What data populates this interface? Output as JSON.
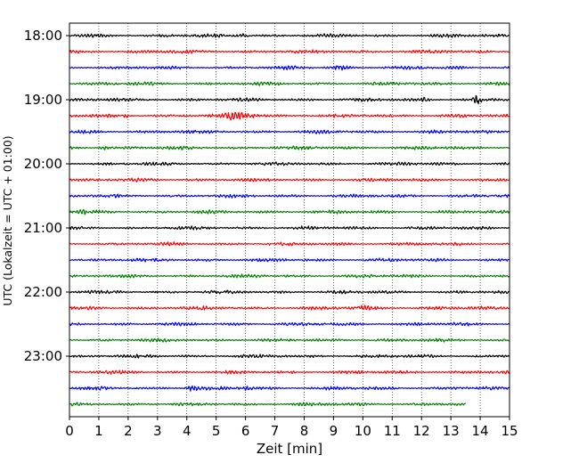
{
  "chart_data": {
    "type": "line",
    "title": "",
    "xlabel": "Zeit  [min]",
    "ylabel": "UTC (Lokalzeit = UTC + 01:00)",
    "xlim": [
      0,
      15
    ],
    "x_ticks": [
      "0",
      "1",
      "2",
      "3",
      "4",
      "5",
      "6",
      "7",
      "8",
      "9",
      "10",
      "11",
      "12",
      "13",
      "14",
      "15"
    ],
    "y_ticks": [
      {
        "label": "18:00",
        "row": 0
      },
      {
        "label": "19:00",
        "row": 4
      },
      {
        "label": "20:00",
        "row": 8
      },
      {
        "label": "21:00",
        "row": 12
      },
      {
        "label": "22:00",
        "row": 16
      },
      {
        "label": "23:00",
        "row": 20
      }
    ],
    "row_duration_min": 15,
    "rows_per_hour": 4,
    "trace_colors": [
      "#000000",
      "#ff0000",
      "#0000ff",
      "#007f00"
    ],
    "grid": "vertical dotted lines at every minute",
    "traces": [
      {
        "start": "18:00",
        "color": "#000000",
        "end_min": 15
      },
      {
        "start": "18:15",
        "color": "#ff0000",
        "end_min": 15
      },
      {
        "start": "18:30",
        "color": "#0000ff",
        "end_min": 15
      },
      {
        "start": "18:45",
        "color": "#007f00",
        "end_min": 15
      },
      {
        "start": "19:00",
        "color": "#000000",
        "end_min": 15
      },
      {
        "start": "19:15",
        "color": "#ff0000",
        "end_min": 15
      },
      {
        "start": "19:30",
        "color": "#0000ff",
        "end_min": 15
      },
      {
        "start": "19:45",
        "color": "#007f00",
        "end_min": 15
      },
      {
        "start": "20:00",
        "color": "#000000",
        "end_min": 15
      },
      {
        "start": "20:15",
        "color": "#ff0000",
        "end_min": 15
      },
      {
        "start": "20:30",
        "color": "#0000ff",
        "end_min": 15
      },
      {
        "start": "20:45",
        "color": "#007f00",
        "end_min": 15
      },
      {
        "start": "21:00",
        "color": "#000000",
        "end_min": 15
      },
      {
        "start": "21:15",
        "color": "#ff0000",
        "end_min": 15
      },
      {
        "start": "21:30",
        "color": "#0000ff",
        "end_min": 15
      },
      {
        "start": "21:45",
        "color": "#007f00",
        "end_min": 15
      },
      {
        "start": "22:00",
        "color": "#000000",
        "end_min": 15
      },
      {
        "start": "22:15",
        "color": "#ff0000",
        "end_min": 15
      },
      {
        "start": "22:30",
        "color": "#0000ff",
        "end_min": 15
      },
      {
        "start": "22:45",
        "color": "#007f00",
        "end_min": 15
      },
      {
        "start": "23:00",
        "color": "#000000",
        "end_min": 15
      },
      {
        "start": "23:15",
        "color": "#ff0000",
        "end_min": 15
      },
      {
        "start": "23:30",
        "color": "#0000ff",
        "end_min": 15
      },
      {
        "start": "23:45",
        "color": "#007f00",
        "end_min": 13.5
      }
    ]
  }
}
